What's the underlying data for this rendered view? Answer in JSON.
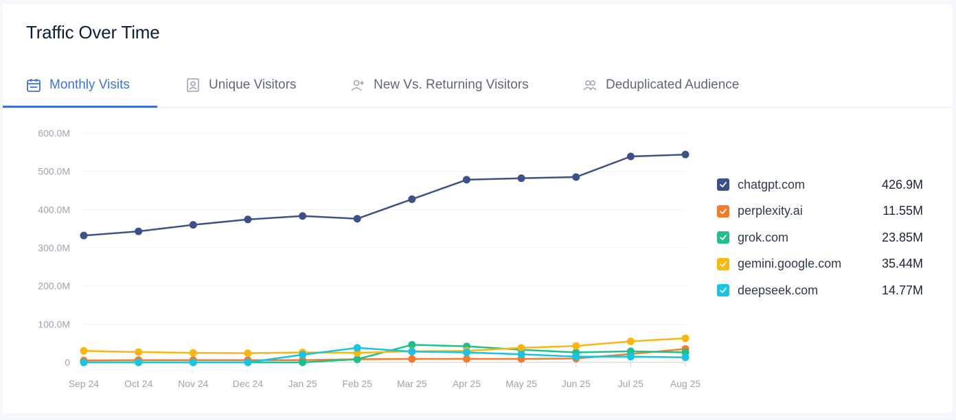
{
  "title": "Traffic Over Time",
  "tabs": [
    {
      "label": "Monthly Visits",
      "icon": "calendar-icon",
      "active": true
    },
    {
      "label": "Unique Visitors",
      "icon": "id-badge-icon",
      "active": false
    },
    {
      "label": "New Vs. Returning Visitors",
      "icon": "user-plus-icon",
      "active": false
    },
    {
      "label": "Deduplicated Audience",
      "icon": "users-icon",
      "active": false
    }
  ],
  "colors": {
    "accent": "#3d6fe0"
  },
  "chart_data": {
    "type": "line",
    "title": "",
    "xlabel": "",
    "ylabel": "",
    "ylim": [
      0,
      600
    ],
    "yticks": [
      0,
      100,
      200,
      300,
      400,
      500,
      600
    ],
    "ytick_labels": [
      "0",
      "100.0M",
      "200.0M",
      "300.0M",
      "400.0M",
      "500.0M",
      "600.0M"
    ],
    "grid": true,
    "legend_position": "right",
    "categories": [
      "Sep 24",
      "Oct 24",
      "Nov 24",
      "Dec 24",
      "Jan 25",
      "Feb 25",
      "Mar 25",
      "Apr 25",
      "May 25",
      "Jun 25",
      "Jul 25",
      "Aug 25"
    ],
    "series": [
      {
        "name": "chatgpt.com",
        "value_label": "426.9M",
        "color": "#3d5189",
        "values": [
          332,
          343,
          360,
          374,
          383,
          376,
          427,
          478,
          482,
          485,
          539,
          544
        ]
      },
      {
        "name": "perplexity.ai",
        "value_label": "11.55M",
        "color": "#f47b2a",
        "values": [
          5,
          6,
          6,
          6,
          6,
          8,
          9,
          9,
          9,
          10,
          22,
          35
        ]
      },
      {
        "name": "grok.com",
        "value_label": "23.85M",
        "color": "#1fc08b",
        "values": [
          0,
          0,
          0,
          0,
          0,
          8,
          46,
          42,
          33,
          26,
          29,
          26
        ]
      },
      {
        "name": "gemini.google.com",
        "value_label": "35.44M",
        "color": "#f9b710",
        "values": [
          30,
          27,
          25,
          24,
          26,
          25,
          29,
          30,
          38,
          43,
          55,
          63
        ]
      },
      {
        "name": "deepseek.com",
        "value_label": "14.77M",
        "color": "#17c4e3",
        "values": [
          0,
          0,
          0,
          0,
          20,
          38,
          28,
          26,
          21,
          15,
          15,
          13
        ]
      }
    ]
  }
}
